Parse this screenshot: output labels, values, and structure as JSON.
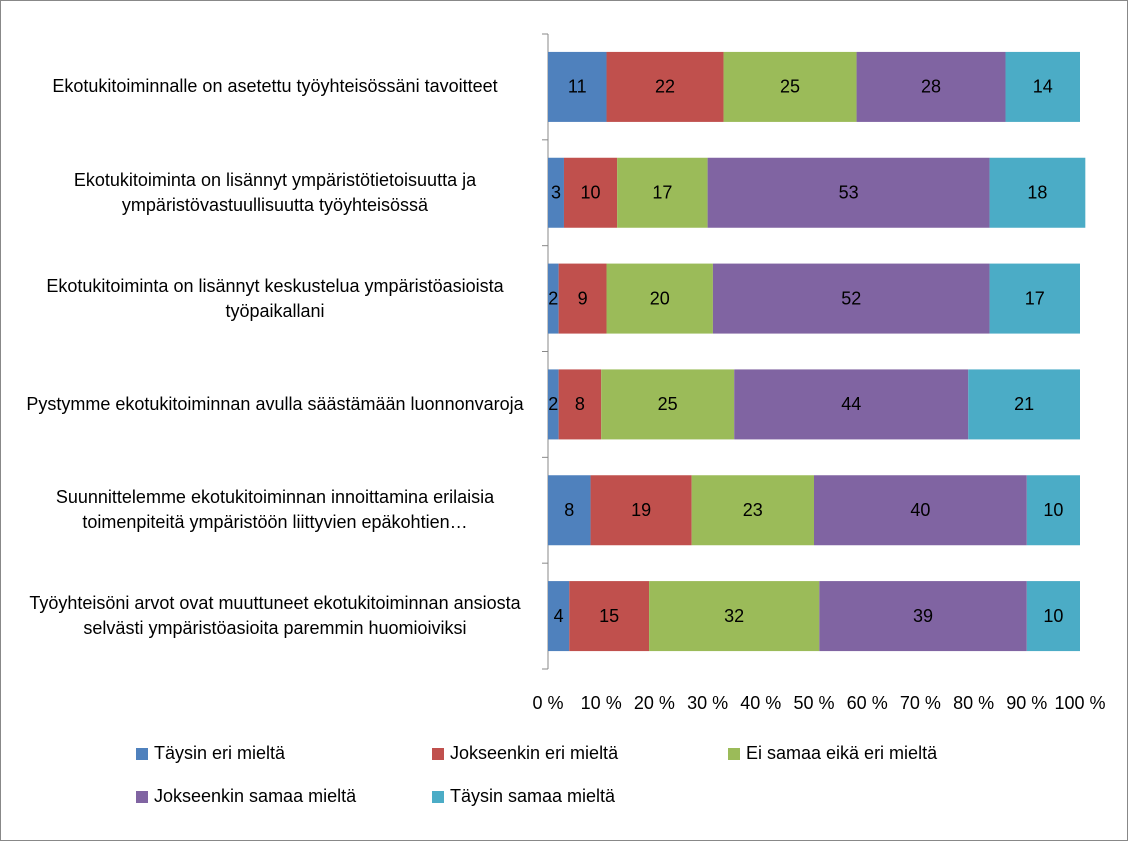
{
  "chart_data": {
    "type": "bar",
    "orientation": "horizontal",
    "stacked": true,
    "categories": [
      "Ekotukitoiminnalle on asetettu työyhteisössäni tavoitteet",
      "Ekotukitoiminta on lisännyt ympäristötietoisuutta ja ympäristövastuullisuutta työyhteisössä",
      "Ekotukitoiminta on lisännyt keskustelua ympäristöasioista työpaikallani",
      "Pystymme ekotukitoiminnan avulla säästämään luonnonvaroja",
      "Suunnittelemme ekotukitoiminnan innoittamina erilaisia toimenpiteitä ympäristöön liittyvien epäkohtien…",
      "Työyhteisöni arvot ovat muuttuneet ekotukitoiminnan ansiosta selvästi ympäristöasioita paremmin huomioiviksi"
    ],
    "series": [
      {
        "name": "Täysin eri mieltä",
        "color": "#4f81bd",
        "values": [
          11,
          3,
          2,
          2,
          8,
          4
        ]
      },
      {
        "name": "Jokseenkin eri mieltä",
        "color": "#c0504d",
        "values": [
          22,
          10,
          9,
          8,
          19,
          15
        ]
      },
      {
        "name": "Ei samaa eikä eri mieltä",
        "color": "#9bbb59",
        "values": [
          25,
          17,
          20,
          25,
          23,
          32
        ]
      },
      {
        "name": "Jokseenkin samaa mieltä",
        "color": "#8064a2",
        "values": [
          28,
          53,
          52,
          44,
          40,
          39
        ]
      },
      {
        "name": "Täysin samaa mieltä",
        "color": "#4bacc6",
        "values": [
          14,
          18,
          17,
          21,
          10,
          10
        ]
      }
    ],
    "xlim": [
      0,
      100
    ],
    "xticks": [
      {
        "value": 0,
        "label": "0 %"
      },
      {
        "value": 10,
        "label": "10 %"
      },
      {
        "value": 20,
        "label": "20 %"
      },
      {
        "value": 30,
        "label": "30 %"
      },
      {
        "value": 40,
        "label": "40 %"
      },
      {
        "value": 50,
        "label": "50 %"
      },
      {
        "value": 60,
        "label": "60 %"
      },
      {
        "value": 70,
        "label": "70 %"
      },
      {
        "value": 80,
        "label": "80 %"
      },
      {
        "value": 90,
        "label": "90 %"
      },
      {
        "value": 100,
        "label": "100 %"
      }
    ],
    "grid": false,
    "legend": "bottom"
  }
}
